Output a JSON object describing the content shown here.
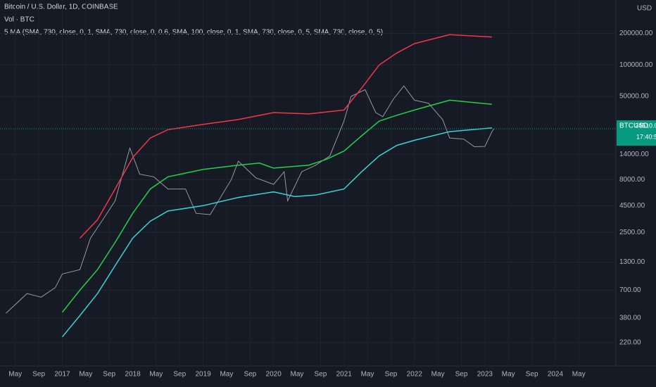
{
  "chart_data": {
    "type": "line",
    "title": "Bitcoin / U.S. Dollar, 1D, COINBASE",
    "subtitle": "Vol · BTC",
    "indicator": "5 MA (SMA, 730, close, 0, 1, SMA, 730, close, 0, 0.6, SMA, 100, close, 0, 1, SMA, 730, close, 0, 5, SMA, 730, close, 0, 5)",
    "y_axis_label": "USD",
    "symbol": "BTCUSD",
    "last_price": 24510.02,
    "countdown": "17:40:58",
    "log_scale": true,
    "grid": true,
    "xlim": [
      2016.116,
      2024.86
    ],
    "ylim": [
      132,
      418000
    ],
    "xticks": [
      {
        "value": 2016.333,
        "label": "May"
      },
      {
        "value": 2016.667,
        "label": "Sep"
      },
      {
        "value": 2017,
        "label": "2017"
      },
      {
        "value": 2017.333,
        "label": "May"
      },
      {
        "value": 2017.667,
        "label": "Sep"
      },
      {
        "value": 2018,
        "label": "2018"
      },
      {
        "value": 2018.333,
        "label": "May"
      },
      {
        "value": 2018.667,
        "label": "Sep"
      },
      {
        "value": 2019,
        "label": "2019"
      },
      {
        "value": 2019.333,
        "label": "May"
      },
      {
        "value": 2019.667,
        "label": "Sep"
      },
      {
        "value": 2020,
        "label": "2020"
      },
      {
        "value": 2020.333,
        "label": "May"
      },
      {
        "value": 2020.667,
        "label": "Sep"
      },
      {
        "value": 2021,
        "label": "2021"
      },
      {
        "value": 2021.333,
        "label": "May"
      },
      {
        "value": 2021.667,
        "label": "Sep"
      },
      {
        "value": 2022,
        "label": "2022"
      },
      {
        "value": 2022.333,
        "label": "May"
      },
      {
        "value": 2022.667,
        "label": "Sep"
      },
      {
        "value": 2023,
        "label": "2023"
      },
      {
        "value": 2023.333,
        "label": "May"
      },
      {
        "value": 2023.667,
        "label": "Sep"
      },
      {
        "value": 2024,
        "label": "2024"
      },
      {
        "value": 2024.333,
        "label": "May"
      }
    ],
    "yticks": [
      {
        "value": 200000,
        "label": "200000.00"
      },
      {
        "value": 100000,
        "label": "100000.00"
      },
      {
        "value": 50000,
        "label": "50000.00"
      },
      {
        "value": 14000,
        "label": "14000.00"
      },
      {
        "value": 8000,
        "label": "8000.00"
      },
      {
        "value": 4500,
        "label": "4500.00"
      },
      {
        "value": 2500,
        "label": "2500.00"
      },
      {
        "value": 1300,
        "label": "1300.00"
      },
      {
        "value": 700,
        "label": "700.00"
      },
      {
        "value": 380,
        "label": "380.00"
      },
      {
        "value": 220,
        "label": "220.00"
      }
    ],
    "series": [
      {
        "name": "BTCUSD",
        "color": "#9598a1",
        "x": [
          2016.2,
          2016.5,
          2016.7,
          2016.9,
          2017.0,
          2017.25,
          2017.4,
          2017.6,
          2017.75,
          2017.96,
          2018.1,
          2018.3,
          2018.5,
          2018.75,
          2018.9,
          2019.1,
          2019.4,
          2019.5,
          2019.75,
          2020.0,
          2020.15,
          2020.2,
          2020.4,
          2020.6,
          2020.8,
          2021.0,
          2021.1,
          2021.3,
          2021.45,
          2021.55,
          2021.7,
          2021.85,
          2022.0,
          2022.2,
          2022.4,
          2022.5,
          2022.7,
          2022.85,
          2023.0,
          2023.1,
          2023.13
        ],
        "values": [
          420,
          650,
          600,
          740,
          1000,
          1100,
          2200,
          3500,
          5000,
          16000,
          9000,
          8500,
          6500,
          6500,
          3800,
          3700,
          8000,
          12000,
          8300,
          7200,
          9500,
          5000,
          9500,
          11000,
          13500,
          29000,
          50000,
          58000,
          35000,
          32000,
          47000,
          63000,
          46000,
          43000,
          30000,
          20000,
          19500,
          16500,
          16600,
          23000,
          24510
        ]
      },
      {
        "name": "SMA 730 × 5",
        "color": "#f23645",
        "x": [
          2017.25,
          2017.5,
          2017.75,
          2018.0,
          2018.25,
          2018.5,
          2019.0,
          2019.5,
          2020.0,
          2020.5,
          2021.0,
          2021.25,
          2021.5,
          2021.75,
          2022.0,
          2022.5,
          2023.1
        ],
        "values": [
          2200,
          3300,
          6500,
          13000,
          20000,
          24000,
          27000,
          30000,
          35000,
          34000,
          37000,
          60000,
          100000,
          130000,
          160000,
          195000,
          185000
        ]
      },
      {
        "name": "SMA 100",
        "color": "#22d14a",
        "x": [
          2017.0,
          2017.25,
          2017.5,
          2017.75,
          2018.0,
          2018.25,
          2018.5,
          2019.0,
          2019.5,
          2019.8,
          2020.0,
          2020.5,
          2020.75,
          2021.0,
          2021.25,
          2021.5,
          2021.75,
          2022.0,
          2022.5,
          2023.1
        ],
        "values": [
          430,
          700,
          1100,
          2000,
          3800,
          6500,
          8500,
          10000,
          11000,
          11500,
          10300,
          11000,
          12500,
          15000,
          21000,
          29000,
          33000,
          37000,
          46000,
          42000
        ]
      },
      {
        "name": "SMA 730",
        "color": "#3ad4d4",
        "x": [
          2017.0,
          2017.25,
          2017.5,
          2017.75,
          2018.0,
          2018.25,
          2018.5,
          2019.0,
          2019.5,
          2020.0,
          2020.3,
          2020.6,
          2021.0,
          2021.25,
          2021.5,
          2021.75,
          2022.0,
          2022.5,
          2023.1
        ],
        "values": [
          250,
          400,
          650,
          1200,
          2200,
          3200,
          4000,
          4500,
          5400,
          6100,
          5500,
          5700,
          6500,
          9500,
          13500,
          17000,
          19000,
          23000,
          25000
        ]
      }
    ]
  }
}
